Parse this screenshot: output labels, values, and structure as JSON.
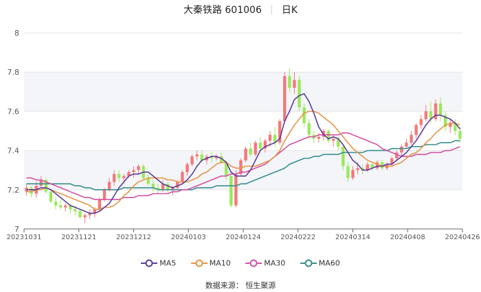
{
  "header": {
    "name": "大秦铁路 601006",
    "period": "日K"
  },
  "source_text": "数据来源： 恒生聚源",
  "colors": {
    "up": "#f4787a",
    "down": "#9be85c",
    "ma5": "#5b3d9b",
    "ma10": "#e69545",
    "ma30": "#d451a3",
    "ma60": "#3a8e8e",
    "grid": "#e5e5e5",
    "band": "#f3f5f9"
  },
  "chart_data": {
    "type": "candlestick",
    "ylim": [
      7,
      8
    ],
    "y_ticks": [
      "7",
      "7.2",
      "7.4",
      "7.6",
      "7.8",
      "8"
    ],
    "x_tick_labels": [
      "20231031",
      "20231121",
      "20231212",
      "20240103",
      "20240124",
      "20240222",
      "20240314",
      "20240408",
      "20240426"
    ],
    "legend": [
      "MA5",
      "MA10",
      "MA30",
      "MA60"
    ],
    "ohlc": [
      [
        7.19,
        7.23,
        7.17,
        7.21
      ],
      [
        7.21,
        7.22,
        7.16,
        7.18
      ],
      [
        7.18,
        7.24,
        7.16,
        7.22
      ],
      [
        7.22,
        7.27,
        7.21,
        7.25
      ],
      [
        7.25,
        7.26,
        7.18,
        7.19
      ],
      [
        7.19,
        7.2,
        7.13,
        7.14
      ],
      [
        7.14,
        7.16,
        7.1,
        7.12
      ],
      [
        7.12,
        7.15,
        7.1,
        7.11
      ],
      [
        7.11,
        7.13,
        7.09,
        7.12
      ],
      [
        7.12,
        7.13,
        7.08,
        7.1
      ],
      [
        7.1,
        7.12,
        7.07,
        7.09
      ],
      [
        7.09,
        7.1,
        7.05,
        7.06
      ],
      [
        7.06,
        7.08,
        7.03,
        7.07
      ],
      [
        7.07,
        7.1,
        7.05,
        7.08
      ],
      [
        7.08,
        7.11,
        7.06,
        7.1
      ],
      [
        7.1,
        7.16,
        7.09,
        7.15
      ],
      [
        7.15,
        7.21,
        7.14,
        7.2
      ],
      [
        7.2,
        7.26,
        7.19,
        7.24
      ],
      [
        7.24,
        7.3,
        7.22,
        7.28
      ],
      [
        7.28,
        7.3,
        7.24,
        7.26
      ],
      [
        7.26,
        7.28,
        7.23,
        7.27
      ],
      [
        7.27,
        7.3,
        7.26,
        7.29
      ],
      [
        7.29,
        7.32,
        7.26,
        7.3
      ],
      [
        7.3,
        7.33,
        7.28,
        7.32
      ],
      [
        7.32,
        7.33,
        7.25,
        7.26
      ],
      [
        7.26,
        7.28,
        7.22,
        7.23
      ],
      [
        7.23,
        7.25,
        7.19,
        7.21
      ],
      [
        7.21,
        7.23,
        7.18,
        7.2
      ],
      [
        7.2,
        7.25,
        7.19,
        7.23
      ],
      [
        7.23,
        7.24,
        7.19,
        7.2
      ],
      [
        7.2,
        7.22,
        7.17,
        7.21
      ],
      [
        7.21,
        7.25,
        7.2,
        7.24
      ],
      [
        7.24,
        7.3,
        7.23,
        7.29
      ],
      [
        7.29,
        7.34,
        7.27,
        7.33
      ],
      [
        7.33,
        7.38,
        7.32,
        7.37
      ],
      [
        7.37,
        7.4,
        7.35,
        7.38
      ],
      [
        7.38,
        7.4,
        7.34,
        7.35
      ],
      [
        7.35,
        7.38,
        7.33,
        7.37
      ],
      [
        7.37,
        7.39,
        7.34,
        7.36
      ],
      [
        7.36,
        7.38,
        7.35,
        7.37
      ],
      [
        7.37,
        7.39,
        7.33,
        7.34
      ],
      [
        7.34,
        7.35,
        7.25,
        7.27
      ],
      [
        7.27,
        7.28,
        7.11,
        7.12
      ],
      [
        7.12,
        7.3,
        7.11,
        7.28
      ],
      [
        7.28,
        7.36,
        7.27,
        7.35
      ],
      [
        7.35,
        7.42,
        7.34,
        7.41
      ],
      [
        7.41,
        7.44,
        7.37,
        7.38
      ],
      [
        7.38,
        7.45,
        7.37,
        7.44
      ],
      [
        7.44,
        7.47,
        7.4,
        7.41
      ],
      [
        7.41,
        7.46,
        7.39,
        7.45
      ],
      [
        7.45,
        7.5,
        7.42,
        7.48
      ],
      [
        7.48,
        7.52,
        7.42,
        7.44
      ],
      [
        7.44,
        7.56,
        7.43,
        7.55
      ],
      [
        7.55,
        7.8,
        7.54,
        7.78
      ],
      [
        7.78,
        7.82,
        7.7,
        7.72
      ],
      [
        7.72,
        7.8,
        7.69,
        7.76
      ],
      [
        7.76,
        7.78,
        7.6,
        7.62
      ],
      [
        7.62,
        7.64,
        7.52,
        7.54
      ],
      [
        7.54,
        7.56,
        7.46,
        7.48
      ],
      [
        7.48,
        7.5,
        7.44,
        7.46
      ],
      [
        7.46,
        7.49,
        7.44,
        7.47
      ],
      [
        7.47,
        7.51,
        7.45,
        7.5
      ],
      [
        7.5,
        7.51,
        7.44,
        7.45
      ],
      [
        7.45,
        7.48,
        7.42,
        7.46
      ],
      [
        7.46,
        7.47,
        7.4,
        7.42
      ],
      [
        7.42,
        7.43,
        7.3,
        7.32
      ],
      [
        7.32,
        7.34,
        7.24,
        7.26
      ],
      [
        7.26,
        7.32,
        7.25,
        7.3
      ],
      [
        7.3,
        7.34,
        7.28,
        7.31
      ],
      [
        7.31,
        7.33,
        7.28,
        7.3
      ],
      [
        7.3,
        7.34,
        7.29,
        7.33
      ],
      [
        7.33,
        7.34,
        7.3,
        7.31
      ],
      [
        7.31,
        7.35,
        7.3,
        7.34
      ],
      [
        7.34,
        7.35,
        7.3,
        7.31
      ],
      [
        7.31,
        7.34,
        7.3,
        7.33
      ],
      [
        7.33,
        7.37,
        7.32,
        7.36
      ],
      [
        7.36,
        7.4,
        7.35,
        7.39
      ],
      [
        7.39,
        7.43,
        7.37,
        7.42
      ],
      [
        7.42,
        7.46,
        7.41,
        7.44
      ],
      [
        7.44,
        7.5,
        7.43,
        7.48
      ],
      [
        7.48,
        7.54,
        7.46,
        7.53
      ],
      [
        7.53,
        7.58,
        7.51,
        7.56
      ],
      [
        7.56,
        7.63,
        7.55,
        7.6
      ],
      [
        7.6,
        7.65,
        7.54,
        7.56
      ],
      [
        7.56,
        7.66,
        7.55,
        7.64
      ],
      [
        7.64,
        7.67,
        7.55,
        7.58
      ],
      [
        7.58,
        7.6,
        7.5,
        7.52
      ],
      [
        7.52,
        7.56,
        7.49,
        7.54
      ],
      [
        7.54,
        7.56,
        7.48,
        7.5
      ],
      [
        7.5,
        7.52,
        7.44,
        7.46
      ]
    ],
    "ma5": [
      7.2,
      7.2,
      7.2,
      7.21,
      7.21,
      7.2,
      7.18,
      7.16,
      7.14,
      7.12,
      7.11,
      7.1,
      7.09,
      7.08,
      7.08,
      7.09,
      7.11,
      7.13,
      7.17,
      7.21,
      7.24,
      7.27,
      7.28,
      7.28,
      7.29,
      7.29,
      7.27,
      7.25,
      7.23,
      7.22,
      7.21,
      7.22,
      7.23,
      7.25,
      7.28,
      7.32,
      7.35,
      7.36,
      7.37,
      7.37,
      7.36,
      7.34,
      7.29,
      7.27,
      7.27,
      7.27,
      7.3,
      7.35,
      7.4,
      7.42,
      7.43,
      7.44,
      7.46,
      7.55,
      7.6,
      7.66,
      7.68,
      7.69,
      7.65,
      7.59,
      7.52,
      7.48,
      7.46,
      7.47,
      7.46,
      7.43,
      7.39,
      7.35,
      7.33,
      7.3,
      7.3,
      7.31,
      7.32,
      7.32,
      7.33,
      7.33,
      7.35,
      7.37,
      7.39,
      7.42,
      7.45,
      7.49,
      7.53,
      7.56,
      7.58,
      7.58,
      7.57,
      7.56,
      7.54,
      7.51
    ],
    "ma10": [
      7.19,
      7.19,
      7.2,
      7.2,
      7.21,
      7.2,
      7.19,
      7.18,
      7.17,
      7.16,
      7.15,
      7.14,
      7.13,
      7.12,
      7.1,
      7.1,
      7.11,
      7.11,
      7.12,
      7.14,
      7.17,
      7.19,
      7.22,
      7.24,
      7.25,
      7.26,
      7.26,
      7.26,
      7.26,
      7.25,
      7.25,
      7.24,
      7.24,
      7.24,
      7.25,
      7.26,
      7.28,
      7.29,
      7.31,
      7.33,
      7.34,
      7.34,
      7.32,
      7.31,
      7.31,
      7.32,
      7.32,
      7.32,
      7.33,
      7.34,
      7.35,
      7.37,
      7.4,
      7.45,
      7.49,
      7.53,
      7.56,
      7.59,
      7.6,
      7.6,
      7.59,
      7.57,
      7.55,
      7.53,
      7.5,
      7.47,
      7.44,
      7.41,
      7.39,
      7.37,
      7.35,
      7.34,
      7.33,
      7.32,
      7.32,
      7.32,
      7.33,
      7.34,
      7.36,
      7.38,
      7.39,
      7.41,
      7.44,
      7.46,
      7.49,
      7.51,
      7.53,
      7.54,
      7.54,
      7.53
    ],
    "ma30": [
      7.26,
      7.26,
      7.25,
      7.25,
      7.24,
      7.23,
      7.22,
      7.21,
      7.2,
      7.19,
      7.18,
      7.17,
      7.16,
      7.16,
      7.15,
      7.15,
      7.15,
      7.15,
      7.15,
      7.15,
      7.16,
      7.16,
      7.16,
      7.17,
      7.17,
      7.17,
      7.18,
      7.18,
      7.18,
      7.18,
      7.19,
      7.19,
      7.2,
      7.2,
      7.21,
      7.22,
      7.23,
      7.24,
      7.25,
      7.26,
      7.27,
      7.27,
      7.28,
      7.28,
      7.29,
      7.29,
      7.3,
      7.31,
      7.32,
      7.33,
      7.35,
      7.37,
      7.39,
      7.41,
      7.43,
      7.44,
      7.45,
      7.46,
      7.47,
      7.47,
      7.48,
      7.48,
      7.48,
      7.48,
      7.48,
      7.49,
      7.49,
      7.48,
      7.47,
      7.46,
      7.45,
      7.44,
      7.43,
      7.41,
      7.4,
      7.39,
      7.38,
      7.37,
      7.37,
      7.37,
      7.38,
      7.38,
      7.38,
      7.39,
      7.39,
      7.39,
      7.4,
      7.4,
      7.41,
      7.42
    ],
    "ma60": [
      7.23,
      7.23,
      7.23,
      7.23,
      7.23,
      7.23,
      7.23,
      7.23,
      7.23,
      7.23,
      7.22,
      7.22,
      7.21,
      7.21,
      7.2,
      7.2,
      7.2,
      7.2,
      7.2,
      7.2,
      7.21,
      7.21,
      7.21,
      7.21,
      7.21,
      7.21,
      7.21,
      7.2,
      7.2,
      7.2,
      7.2,
      7.2,
      7.2,
      7.2,
      7.2,
      7.21,
      7.21,
      7.21,
      7.21,
      7.22,
      7.22,
      7.22,
      7.22,
      7.22,
      7.23,
      7.23,
      7.24,
      7.25,
      7.26,
      7.27,
      7.28,
      7.29,
      7.3,
      7.31,
      7.33,
      7.34,
      7.35,
      7.36,
      7.36,
      7.37,
      7.37,
      7.38,
      7.38,
      7.38,
      7.38,
      7.39,
      7.39,
      7.39,
      7.39,
      7.39,
      7.4,
      7.4,
      7.4,
      7.4,
      7.4,
      7.41,
      7.41,
      7.41,
      7.41,
      7.42,
      7.42,
      7.42,
      7.43,
      7.43,
      7.43,
      7.44,
      7.44,
      7.44,
      7.45,
      7.45
    ]
  }
}
